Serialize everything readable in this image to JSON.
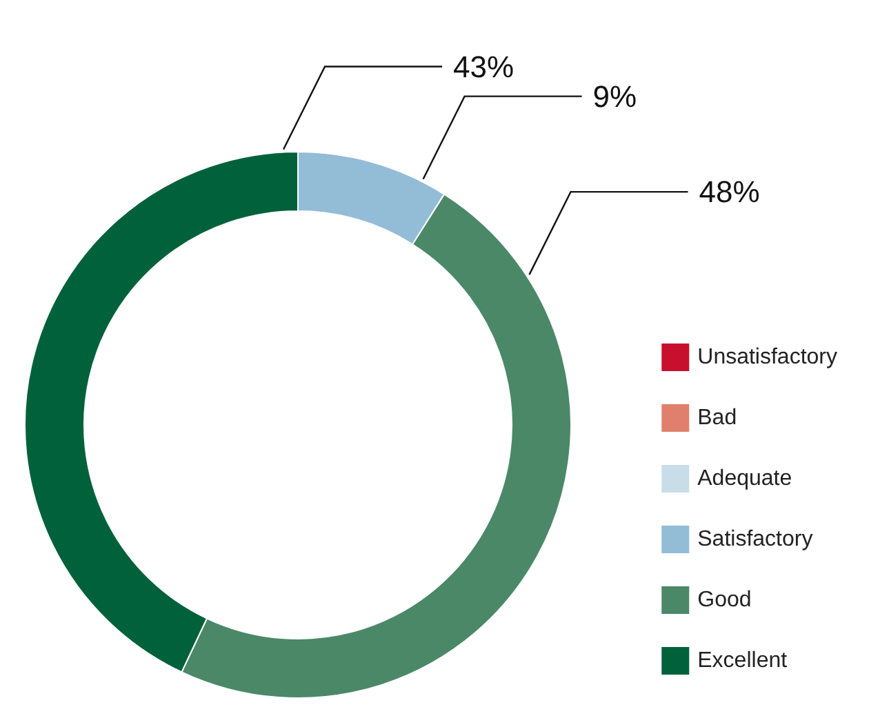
{
  "chart_data": {
    "type": "donut",
    "categories": [
      "Unsatisfactory",
      "Bad",
      "Adequate",
      "Satisfactory",
      "Good",
      "Excellent"
    ],
    "values": [
      0,
      0,
      0,
      9,
      48,
      43
    ],
    "colors": [
      "#c8102e",
      "#e0806c",
      "#c9dde9",
      "#93bcd6",
      "#4b8868",
      "#00613b"
    ],
    "value_labels": [
      null,
      null,
      null,
      "9%",
      "48%",
      "43%"
    ],
    "legend": "bottom right"
  }
}
